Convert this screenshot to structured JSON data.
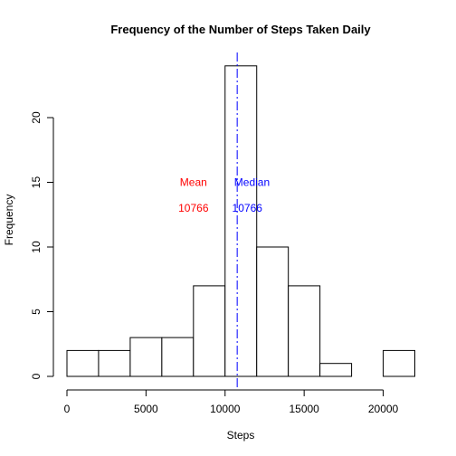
{
  "chart_data": {
    "type": "bar",
    "title": "Frequency of the Number of Steps Taken Daily",
    "xlabel": "Steps",
    "ylabel": "Frequency",
    "bin_edges": [
      0,
      2000,
      4000,
      6000,
      8000,
      10000,
      12000,
      14000,
      16000,
      18000,
      20000,
      22000
    ],
    "values": [
      2,
      2,
      3,
      3,
      7,
      24,
      10,
      7,
      1,
      0,
      2
    ],
    "xlim": [
      0,
      22000
    ],
    "ylim": [
      0,
      25
    ],
    "x_ticks": [
      0,
      5000,
      10000,
      15000,
      20000
    ],
    "x_tick_labels": [
      "0",
      "5000",
      "10000",
      "15000",
      "20000"
    ],
    "y_ticks": [
      0,
      5,
      10,
      15,
      20
    ],
    "y_tick_labels": [
      "0",
      "5",
      "10",
      "15",
      "20"
    ],
    "grid": false,
    "bar_fill": "#ffffff",
    "bar_stroke": "#000000",
    "reference_line": {
      "x": 10766,
      "color": "#0000ff",
      "style": "dashed"
    },
    "annotations": [
      {
        "name": "mean-label",
        "text": "Mean",
        "x": 8000,
        "y": 15,
        "color": "#ff0000"
      },
      {
        "name": "mean-value",
        "text": "10766",
        "x": 8000,
        "y": 13,
        "color": "#ff0000"
      },
      {
        "name": "median-label",
        "text": "Median",
        "x": 11700,
        "y": 15,
        "color": "#0000ff"
      },
      {
        "name": "median-value",
        "text": "10766",
        "x": 11400,
        "y": 13,
        "color": "#0000ff"
      }
    ]
  }
}
